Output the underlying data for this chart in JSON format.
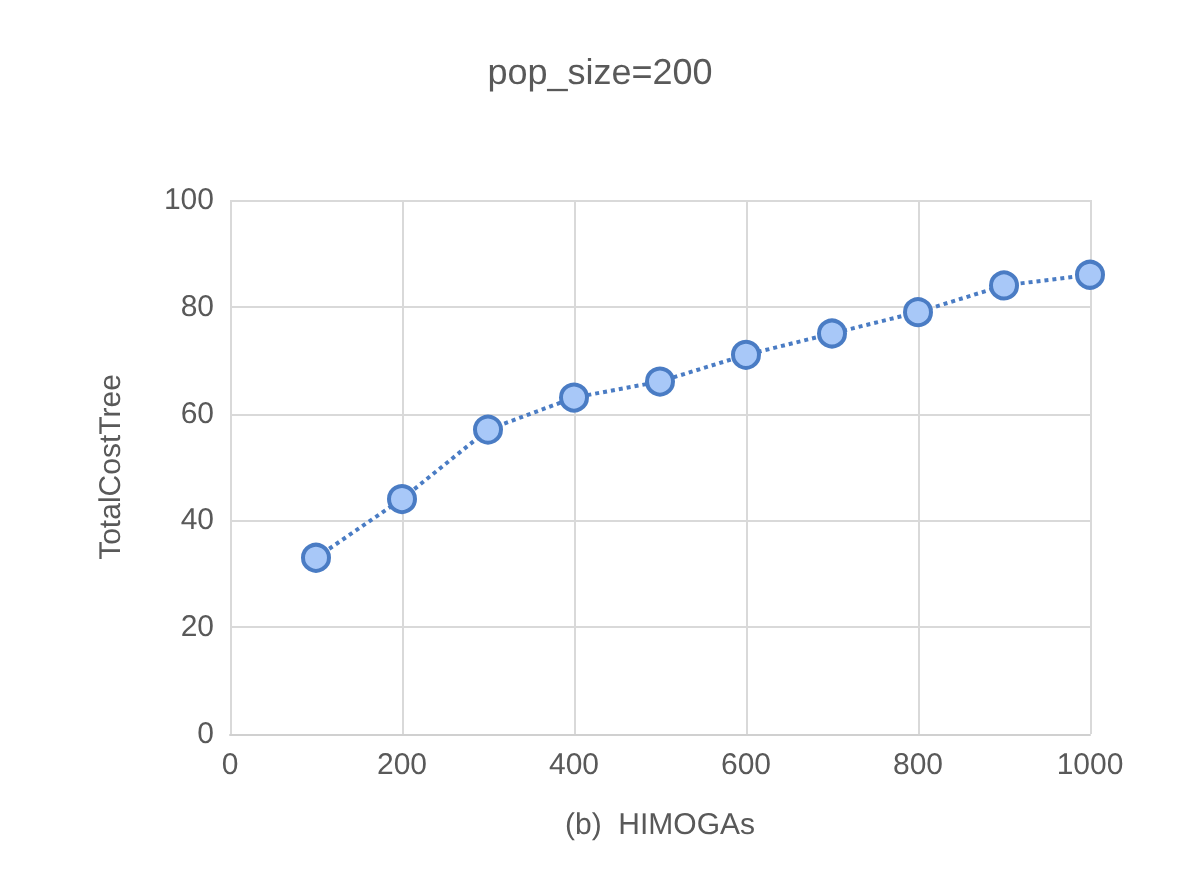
{
  "chart_data": {
    "type": "line",
    "title": "pop_size=200",
    "xlabel": "(b)  HIMOGAs",
    "ylabel": "TotalCostTree",
    "x": [
      100,
      200,
      300,
      400,
      500,
      600,
      700,
      800,
      900,
      1000
    ],
    "series": [
      {
        "color": "#4a7cc4",
        "values": [
          33,
          44,
          57,
          63,
          66,
          71,
          75,
          79,
          84,
          86
        ]
      }
    ],
    "xlim": [
      0,
      1000
    ],
    "xticks": [
      0,
      200,
      400,
      600,
      800,
      1000
    ],
    "ylim": [
      0,
      100
    ],
    "yticks": [
      0,
      20,
      40,
      60,
      80,
      100
    ],
    "grid": true,
    "marker": "circle",
    "line_style": "dotted"
  }
}
